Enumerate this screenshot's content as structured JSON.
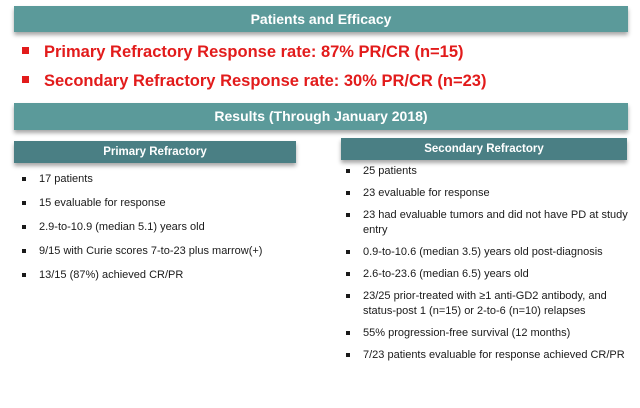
{
  "banner_top": "Patients and Efficacy",
  "headlines": [
    "Primary Refractory Response rate: 87% PR/CR (n=15)",
    "Secondary Refractory Response rate: 30% PR/CR (n=23)"
  ],
  "banner_results": "Results (Through January 2018)",
  "primary": {
    "heading": "Primary Refractory",
    "items": [
      "17 patients",
      "15 evaluable for response",
      "2.9-to-10.9 (median 5.1) years old",
      "9/15 with Curie scores 7-to-23 plus marrow(+)",
      "13/15 (87%) achieved CR/PR"
    ]
  },
  "secondary": {
    "heading": "Secondary Refractory",
    "items": [
      "25 patients",
      "23 evaluable for response",
      "23 had evaluable tumors and did not have PD at study entry",
      "0.9-to-10.6 (median 3.5) years old post-diagnosis",
      "2.6-to-23.6 (median 6.5) years old",
      "23/25 prior-treated with ≥1 anti-GD2 antibody, and status-post 1 (n=15) or 2-to-6 (n=10) relapses",
      "55% progression-free survival (12 months)",
      "7/23 patients evaluable for response achieved CR/PR"
    ]
  },
  "colors": {
    "banner": "#5b9a9a",
    "column_header": "#4a7f84",
    "headline": "#e21b1b"
  }
}
